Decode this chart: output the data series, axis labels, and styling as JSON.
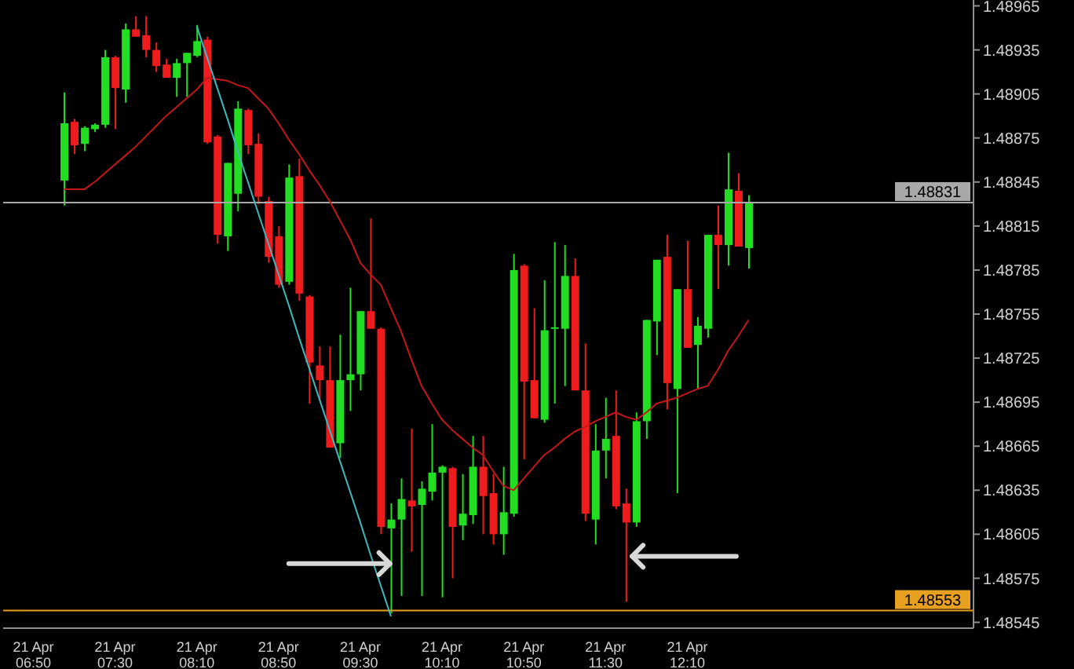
{
  "chart_data": {
    "type": "candlestick",
    "categories": [
      "21 Apr 06:50",
      null,
      null,
      null,
      null,
      null,
      null,
      null,
      "21 Apr 07:30",
      null,
      null,
      null,
      null,
      null,
      null,
      null,
      "21 Apr 08:10",
      null,
      null,
      null,
      null,
      null,
      null,
      null,
      "21 Apr 08:50",
      null,
      null,
      null,
      null,
      null,
      null,
      null,
      "21 Apr 09:30",
      null,
      null,
      null,
      null,
      null,
      null,
      null,
      "21 Apr 10:10",
      null,
      null,
      null,
      null,
      null,
      null,
      null,
      "21 Apr 10:50",
      null,
      null,
      null,
      null,
      null,
      null,
      null,
      "21 Apr 11:30",
      null,
      null,
      null,
      null,
      null,
      null,
      null,
      "21 Apr 12:10",
      null,
      null,
      null,
      null,
      null,
      null
    ],
    "ohlc": [
      null,
      null,
      null,
      [
        1.48846,
        1.48906,
        1.48829,
        1.48885
      ],
      [
        1.48886,
        1.48888,
        1.48864,
        1.4887
      ],
      [
        1.48871,
        1.48883,
        1.48866,
        1.48882
      ],
      [
        1.48881,
        1.48885,
        1.48879,
        1.48884
      ],
      [
        1.48884,
        1.48935,
        1.48882,
        1.4893
      ],
      [
        1.4893,
        1.48931,
        1.48881,
        1.48909
      ],
      [
        1.48908,
        1.48953,
        1.48899,
        1.48949
      ],
      [
        1.48949,
        1.48958,
        1.48944,
        1.48944
      ],
      [
        1.48945,
        1.48958,
        1.4893,
        1.48935
      ],
      [
        1.48935,
        1.4894,
        1.4892,
        1.48924
      ],
      [
        1.48925,
        1.48929,
        1.48916,
        1.48916
      ],
      [
        1.48916,
        1.48929,
        1.48903,
        1.48926
      ],
      [
        1.48926,
        1.48933,
        1.48903,
        1.48933
      ],
      [
        1.48931,
        1.48952,
        1.4893,
        1.48941
      ],
      [
        1.48942,
        1.48944,
        1.48871,
        1.48872
      ],
      [
        1.48876,
        1.48877,
        1.48803,
        1.48809
      ],
      [
        1.48808,
        1.48858,
        1.48798,
        1.48858
      ],
      [
        1.48837,
        1.489,
        1.48825,
        1.48895
      ],
      [
        1.48894,
        1.48895,
        1.48864,
        1.4887
      ],
      [
        1.48871,
        1.48878,
        1.4883,
        1.48835
      ],
      [
        1.48832,
        1.48835,
        1.4879,
        1.48794
      ],
      [
        1.48808,
        1.48815,
        1.48773,
        1.48775
      ],
      [
        1.48777,
        1.48857,
        1.48775,
        1.48848
      ],
      [
        1.48849,
        1.48861,
        1.48764,
        1.48769
      ],
      [
        1.48767,
        1.48768,
        1.48694,
        1.48722
      ],
      [
        1.4872,
        1.48733,
        1.48696,
        1.4871
      ],
      [
        1.4871,
        1.48733,
        1.48664,
        1.48664
      ],
      [
        1.48667,
        1.48741,
        1.48657,
        1.4871
      ],
      [
        1.4871,
        1.48773,
        1.48689,
        1.48714
      ],
      [
        1.48714,
        1.48757,
        1.48703,
        1.48757
      ],
      [
        1.48757,
        1.4882,
        1.48745,
        1.48745
      ],
      [
        1.48745,
        1.48746,
        1.48605,
        1.4861
      ],
      [
        1.48609,
        1.48626,
        1.48551,
        1.48615
      ],
      [
        1.48615,
        1.48643,
        1.48563,
        1.48629
      ],
      [
        1.48628,
        1.48677,
        1.48593,
        1.48624
      ],
      [
        1.48625,
        1.48641,
        1.48563,
        1.48636
      ],
      [
        1.48634,
        1.4868,
        1.48628,
        1.48647
      ],
      [
        1.48647,
        1.48652,
        1.48562,
        1.48651
      ],
      [
        1.4865,
        1.48651,
        1.48575,
        1.4861
      ],
      [
        1.48611,
        1.48646,
        1.48601,
        1.48619
      ],
      [
        1.48618,
        1.48672,
        1.48612,
        1.48651
      ],
      [
        1.48651,
        1.48672,
        1.48605,
        1.48631
      ],
      [
        1.48633,
        1.48646,
        1.48598,
        1.48605
      ],
      [
        1.48605,
        1.48651,
        1.48591,
        1.4862
      ],
      [
        1.48619,
        1.48796,
        1.48617,
        1.48785
      ],
      [
        1.48788,
        1.48789,
        1.48656,
        1.48709
      ],
      [
        1.4871,
        1.48759,
        1.48684,
        1.48684
      ],
      [
        1.48683,
        1.48778,
        1.48681,
        1.48744
      ],
      [
        1.48745,
        1.48804,
        1.48694,
        1.48746
      ],
      [
        1.48745,
        1.48802,
        1.48706,
        1.48781
      ],
      [
        1.48781,
        1.48793,
        1.48703,
        1.48703
      ],
      [
        1.48703,
        1.48735,
        1.48614,
        1.48619
      ],
      [
        1.48615,
        1.4868,
        1.48598,
        1.48662
      ],
      [
        1.48662,
        1.48698,
        1.48643,
        1.4867
      ],
      [
        1.48672,
        1.48703,
        1.48622,
        1.48624
      ],
      [
        1.48626,
        1.48636,
        1.48559,
        1.48613
      ],
      [
        1.48613,
        1.48688,
        1.4861,
        1.48682
      ],
      [
        1.48682,
        1.48751,
        1.4867,
        1.48751
      ],
      [
        1.4875,
        1.48792,
        1.48727,
        1.48792
      ],
      [
        1.48794,
        1.48809,
        1.4869,
        1.48708
      ],
      [
        1.48704,
        1.48772,
        1.48633,
        1.48772
      ],
      [
        1.48772,
        1.48805,
        1.48732,
        1.48732
      ],
      [
        1.48734,
        1.48753,
        1.48704,
        1.48747
      ],
      [
        1.48745,
        1.48809,
        1.48739,
        1.48809
      ],
      [
        1.48809,
        1.48829,
        1.48772,
        1.48802
      ],
      [
        1.48802,
        1.48865,
        1.48788,
        1.4884
      ],
      [
        1.48839,
        1.48851,
        1.48801,
        1.48801
      ],
      [
        1.488,
        1.48836,
        1.48786,
        1.48831
      ]
    ],
    "colors": [
      null,
      null,
      null,
      "#22dd22",
      "#ee1c1c",
      "#22dd22",
      "#22dd22",
      "#22dd22",
      "#ee1c1c",
      "#22dd22",
      "#ee1c1c",
      "#ee1c1c",
      "#ee1c1c",
      "#ee1c1c",
      "#22dd22",
      "#22dd22",
      "#22dd22",
      "#ee1c1c",
      "#ee1c1c",
      "#22dd22",
      "#22dd22",
      "#ee1c1c",
      "#ee1c1c",
      "#ee1c1c",
      "#ee1c1c",
      "#22dd22",
      "#ee1c1c",
      "#ee1c1c",
      "#ee1c1c",
      "#ee1c1c",
      "#22dd22",
      "#22dd22",
      "#22dd22",
      "#ee1c1c",
      "#ee1c1c",
      "#22dd22",
      "#22dd22",
      "#ee1c1c",
      "#22dd22",
      "#22dd22",
      "#22dd22",
      "#ee1c1c",
      "#22dd22",
      "#22dd22",
      "#ee1c1c",
      "#ee1c1c",
      "#22dd22",
      "#22dd22",
      "#ee1c1c",
      "#ee1c1c",
      "#22dd22",
      "#22dd22",
      "#22dd22",
      "#ee1c1c",
      "#ee1c1c",
      "#22dd22",
      "#22dd22",
      "#ee1c1c",
      "#ee1c1c",
      "#22dd22",
      "#22dd22",
      "#22dd22",
      "#ee1c1c",
      "#22dd22",
      "#ee1c1c",
      "#22dd22",
      "#22dd22",
      "#ee1c1c",
      "#22dd22",
      "#ee1c1c",
      "#22dd22"
    ],
    "series": [
      {
        "type": "line",
        "color": "#c41818",
        "values": [
          null,
          null,
          null,
          1.4884,
          1.4884,
          1.4884,
          1.48845,
          1.48851,
          1.48857,
          1.48863,
          1.48869,
          1.48876,
          1.48883,
          1.4889,
          1.48896,
          1.48902,
          1.48908,
          1.48916,
          1.48915,
          1.48914,
          1.48911,
          1.48909,
          1.48902,
          1.48895,
          1.48885,
          1.48874,
          1.48864,
          1.48853,
          1.48843,
          1.48832,
          1.48819,
          1.48806,
          1.4879,
          1.48782,
          1.48775,
          1.48759,
          1.48743,
          1.48724,
          1.48706,
          1.48694,
          1.48683,
          1.48676,
          1.4867,
          1.48664,
          1.48659,
          1.48648,
          1.48638,
          1.48635,
          1.48643,
          1.48651,
          1.48659,
          1.48664,
          1.4867,
          1.48675,
          1.48678,
          1.48682,
          1.48685,
          1.48688,
          1.48685,
          1.48683,
          1.48688,
          1.48694,
          1.48696,
          1.48698,
          1.48701,
          1.48704,
          1.48706,
          1.48717,
          1.4873,
          1.4874,
          1.48751
        ]
      },
      {
        "type": "line",
        "color": "#3fb8c0",
        "values": [
          null,
          null,
          null,
          null,
          null,
          null,
          null,
          null,
          null,
          null,
          null,
          null,
          null,
          null,
          null,
          null,
          1.48951,
          1.4893,
          1.48909,
          1.48888,
          1.48866,
          1.48845,
          1.48824,
          1.48803,
          1.48782,
          1.48761,
          1.48739,
          1.48718,
          1.48697,
          1.48676,
          1.48655,
          1.48634,
          1.48613,
          1.48591,
          1.4857,
          1.48549,
          null,
          null,
          null,
          null,
          null,
          null,
          null,
          null,
          null,
          null,
          null,
          null,
          null,
          null,
          null,
          null,
          null,
          null,
          null,
          null,
          null,
          null,
          null,
          null,
          null,
          null,
          null,
          null,
          null,
          null,
          null,
          null,
          null,
          null,
          null
        ]
      }
    ],
    "ylim": [
      1.48541,
      1.48969
    ],
    "yticks": [
      1.48965,
      1.48935,
      1.48905,
      1.48875,
      1.48845,
      1.48815,
      1.48785,
      1.48755,
      1.48725,
      1.48695,
      1.48665,
      1.48635,
      1.48605,
      1.48575,
      1.48545
    ],
    "ref_lines": [
      {
        "axis": "y",
        "value": 1.48831,
        "label": "1.48831",
        "color": "#a8a8a8"
      },
      {
        "axis": "y",
        "value": 1.48553,
        "label": "1.48553",
        "color": "#e8a020"
      }
    ]
  }
}
